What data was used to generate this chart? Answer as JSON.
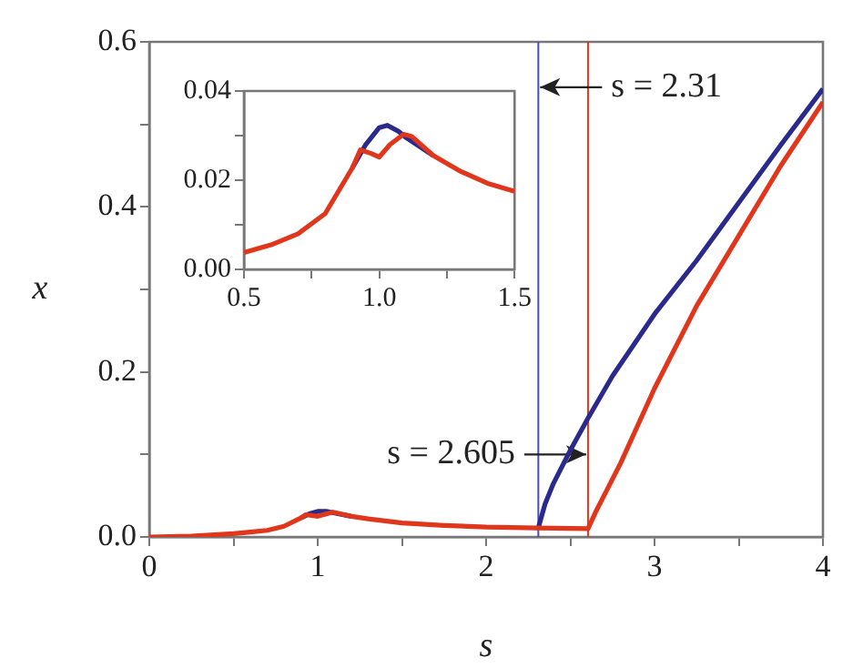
{
  "chart_data": [
    {
      "type": "line",
      "xlabel": "s",
      "ylabel": "x",
      "xlim": [
        0,
        4
      ],
      "ylim": [
        0,
        0.6
      ],
      "xticks": [
        0,
        {
          "value": 0.5,
          "label": null
        },
        1,
        {
          "value": 1.5,
          "label": null
        },
        2,
        {
          "value": 2.5,
          "label": null
        },
        3,
        {
          "value": 3.5,
          "label": null
        },
        4
      ],
      "yticks": [
        {
          "value": 0,
          "label": "0.0"
        },
        {
          "value": 0.1,
          "label": null
        },
        0.2,
        {
          "value": 0.3,
          "label": null
        },
        0.4,
        {
          "value": 0.5,
          "label": null
        },
        0.6
      ],
      "grid": false,
      "legend": false,
      "marker": "none",
      "line_style": "solid",
      "series": [
        {
          "color": "#2a2a8c",
          "x": [
            0.9,
            0.95,
            1.0,
            1.05,
            1.1,
            1.2,
            1.5,
            2.3,
            2.31,
            2.35,
            2.4,
            2.5,
            2.605,
            2.75,
            3,
            3.25,
            3.5,
            3.75,
            4
          ],
          "values": [
            0.023,
            0.028,
            0.031,
            0.031,
            0.029,
            0.025,
            null,
            0.011,
            0.011,
            0.04,
            0.065,
            0.105,
            0.144,
            0.195,
            0.27,
            0.335,
            0.405,
            0.475,
            0.543
          ]
        },
        {
          "color": "#e0361c",
          "x": [
            0,
            0.25,
            0.5,
            0.6,
            0.7,
            0.8,
            0.9,
            0.93,
            1.0,
            1.09,
            1.2,
            1.3,
            1.5,
            1.75,
            2,
            2.3,
            2.605,
            2.65,
            2.7,
            2.8,
            3,
            3.25,
            3.5,
            3.75,
            4
          ],
          "values": [
            0,
            0.001,
            0.004,
            0.006,
            0.008,
            0.013,
            0.023,
            0.027,
            0.025,
            0.03,
            0.025,
            0.022,
            0.017,
            0.014,
            0.012,
            0.011,
            0.01,
            0.03,
            0.05,
            0.09,
            0.18,
            0.28,
            0.365,
            0.45,
            0.527
          ]
        }
      ],
      "ref_lines": [
        {
          "axis": "x",
          "value": 2.31,
          "color": "#4a4ab8"
        },
        {
          "axis": "x",
          "value": 2.605,
          "color": "#e0361c"
        }
      ],
      "annotations": [
        {
          "text": "s = 2.31",
          "x": 2.31,
          "y": 0.545
        },
        {
          "text": "s = 2.605",
          "x": 2.605,
          "y": 0.1
        }
      ]
    },
    {
      "type": "line",
      "xlim": [
        0.5,
        1.5
      ],
      "ylim": [
        0,
        0.04
      ],
      "xticks": [
        {
          "value": 0.5,
          "label": "0.5"
        },
        {
          "value": 0.75,
          "label": null
        },
        {
          "value": 1,
          "label": "1.0"
        },
        {
          "value": 1.25,
          "label": null
        },
        {
          "value": 1.5,
          "label": "1.5"
        }
      ],
      "yticks": [
        {
          "value": 0,
          "label": "0.00"
        },
        {
          "value": 0.01,
          "label": null
        },
        {
          "value": 0.02,
          "label": "0.02"
        },
        {
          "value": 0.03,
          "label": null
        },
        {
          "value": 0.04,
          "label": "0.04"
        }
      ],
      "grid": false,
      "legend": false,
      "marker": "none",
      "line_style": "solid",
      "series": [
        {
          "color": "#2a2a8c",
          "x": [
            0.9,
            0.95,
            1.0,
            1.03,
            1.07,
            1.1,
            1.2
          ],
          "values": [
            0.0227,
            0.028,
            0.0318,
            0.0323,
            0.031,
            0.0295,
            0.0255
          ]
        },
        {
          "color": "#e0361c",
          "x": [
            0.5,
            0.6,
            0.7,
            0.8,
            0.9,
            0.93,
            0.97,
            1.0,
            1.04,
            1.09,
            1.12,
            1.2,
            1.3,
            1.4,
            1.5
          ],
          "values": [
            0.0038,
            0.0055,
            0.008,
            0.0125,
            0.0227,
            0.0268,
            0.026,
            0.0252,
            0.028,
            0.0303,
            0.0298,
            0.0255,
            0.022,
            0.0193,
            0.0175
          ]
        }
      ]
    }
  ]
}
